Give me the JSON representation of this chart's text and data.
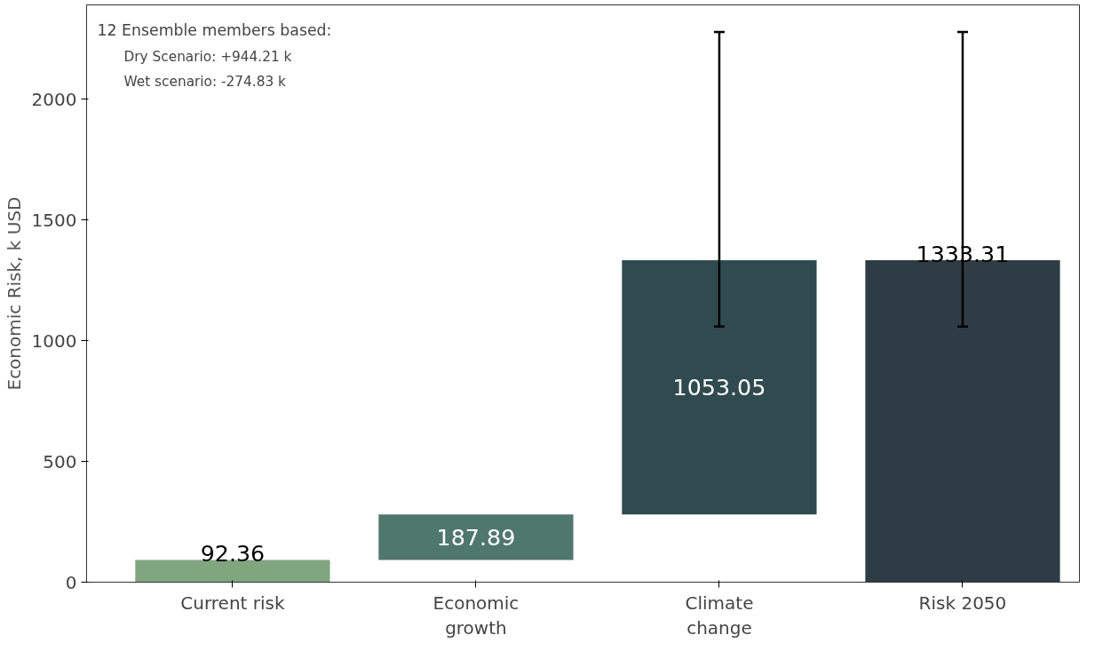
{
  "chart_data": {
    "type": "bar",
    "ylabel": "Economic Risk, k USD",
    "categories": [
      "Current risk",
      "Economic\ngrowth",
      "Climate\nchange",
      "Risk 2050"
    ],
    "values": [
      92.36,
      187.89,
      1053.05,
      1333.31
    ],
    "base": [
      0,
      92.36,
      280.25,
      0
    ],
    "colors": [
      "#7fa67f",
      "#4f786d",
      "#2f4b4f",
      "#2e3c45"
    ],
    "errors": [
      null,
      null,
      [
        1058.48,
        2277.52
      ],
      [
        1058.48,
        2277.52
      ]
    ],
    "data_labels": true,
    "ylim": [
      0,
      2390
    ],
    "yticks": [
      0,
      500,
      1000,
      1500,
      2000
    ],
    "grid": false,
    "annotations": [
      "12 Ensemble members based:",
      "Dry Scenario: +944.21 k",
      "Wet scenario: -274.83 k"
    ]
  }
}
